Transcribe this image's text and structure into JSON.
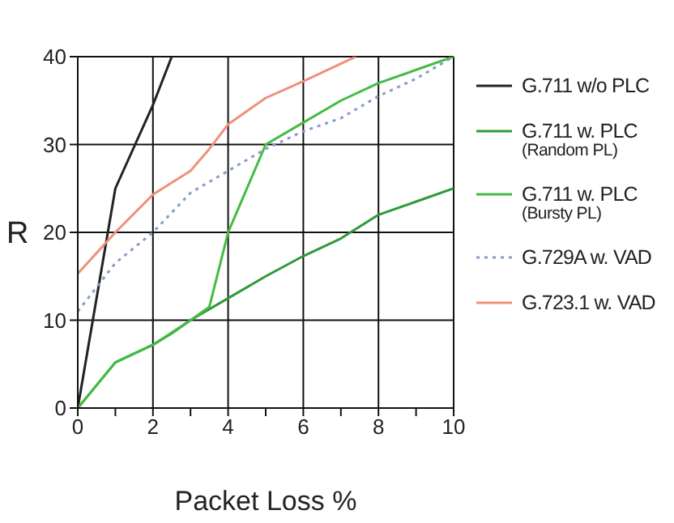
{
  "chart_data": {
    "type": "line",
    "xlabel": "Packet Loss %",
    "ylabel": "R",
    "xlim": [
      0,
      10
    ],
    "ylim": [
      0,
      40
    ],
    "xticks": [
      0,
      {
        "value": 1,
        "label": null
      },
      2,
      {
        "value": 3,
        "label": null
      },
      4,
      {
        "value": 5,
        "label": null
      },
      6,
      {
        "value": 7,
        "label": null
      },
      8,
      {
        "value": 9,
        "label": null
      },
      10
    ],
    "yticks": [
      0,
      10,
      20,
      30,
      40
    ],
    "grid": true,
    "legend": "right",
    "marker": "none",
    "series": [
      {
        "name": "G.711 w/o PLC",
        "color": "#222222",
        "line_style": "solid",
        "x": [
          0,
          1,
          2,
          2.5
        ],
        "values": [
          0,
          25,
          34.5,
          40
        ]
      },
      {
        "name": "G.711 w. PLC\n(Random PL)",
        "color": "#2e9a3a",
        "line_style": "solid",
        "x": [
          0,
          1,
          2,
          2.5,
          3,
          4,
          5,
          6,
          7,
          8,
          9,
          10
        ],
        "values": [
          0,
          5.2,
          7.2,
          8.5,
          10,
          12.5,
          15,
          17.3,
          19.3,
          22,
          23.5,
          25
        ]
      },
      {
        "name": "G.711 w. PLC\n(Bursty PL)",
        "color": "#44bb44",
        "line_style": "solid",
        "x": [
          0,
          1,
          2,
          3,
          3.5,
          4,
          5,
          6,
          7,
          8,
          9,
          10
        ],
        "values": [
          0,
          5.2,
          7.2,
          10,
          11.5,
          20,
          30,
          32.5,
          35,
          37,
          38.5,
          40
        ]
      },
      {
        "name": "G.729A w. VAD",
        "color": "#8899cc",
        "line_style": "dotted",
        "x": [
          0,
          1,
          2,
          3,
          4,
          5,
          6,
          7,
          8,
          9,
          10
        ],
        "values": [
          11,
          16.5,
          20,
          24.5,
          27,
          29.5,
          31.5,
          33,
          35.5,
          37.5,
          40
        ]
      },
      {
        "name": "G.723.1 w. VAD",
        "color": "#f0907a",
        "line_style": "solid",
        "x": [
          0,
          1,
          2,
          3,
          3.5,
          4,
          5,
          6,
          7,
          7.4
        ],
        "values": [
          15.3,
          20,
          24.3,
          27,
          29.5,
          32.3,
          35.3,
          37.2,
          39.2,
          40
        ]
      }
    ]
  }
}
